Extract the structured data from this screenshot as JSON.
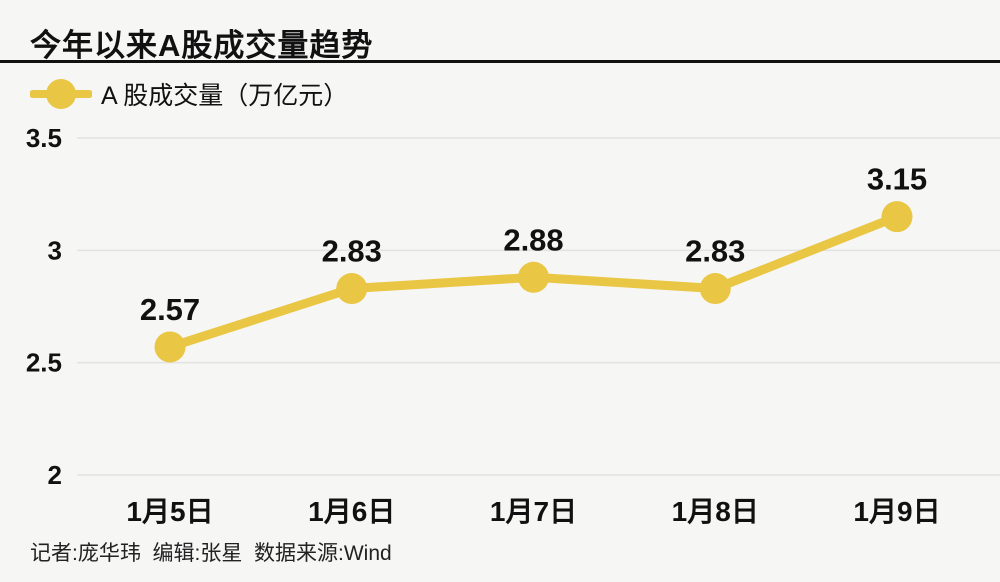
{
  "title": "今年以来A股成交量趋势",
  "legend": {
    "label": "A 股成交量（万亿元）"
  },
  "footer": {
    "credits": "记者:庞华玮  编辑:张星  数据来源:Wind"
  },
  "colors": {
    "background": "#f6f6f5",
    "accent": "#e9c643",
    "text": "#111111",
    "gridline": "#e2e2e1",
    "divider": "#111111"
  },
  "chart_data": {
    "type": "line",
    "title": "今年以来A股成交量趋势",
    "categories": [
      "1月5日",
      "1月6日",
      "1月7日",
      "1月8日",
      "1月9日"
    ],
    "series": [
      {
        "name": "A 股成交量（万亿元）",
        "values": [
          2.57,
          2.83,
          2.88,
          2.83,
          3.15
        ]
      }
    ],
    "value_labels": [
      "2.57",
      "2.83",
      "2.88",
      "2.83",
      "3.15"
    ],
    "xlabel": "",
    "ylabel": "万亿元",
    "ylim": [
      2.0,
      3.5
    ],
    "yticks": [
      3.5,
      3.0,
      2.5,
      2.0
    ],
    "ytick_labels": [
      "3.5",
      "3",
      "2.5",
      "2"
    ],
    "grid": true,
    "legend_position": "top-left",
    "source": "Wind"
  }
}
